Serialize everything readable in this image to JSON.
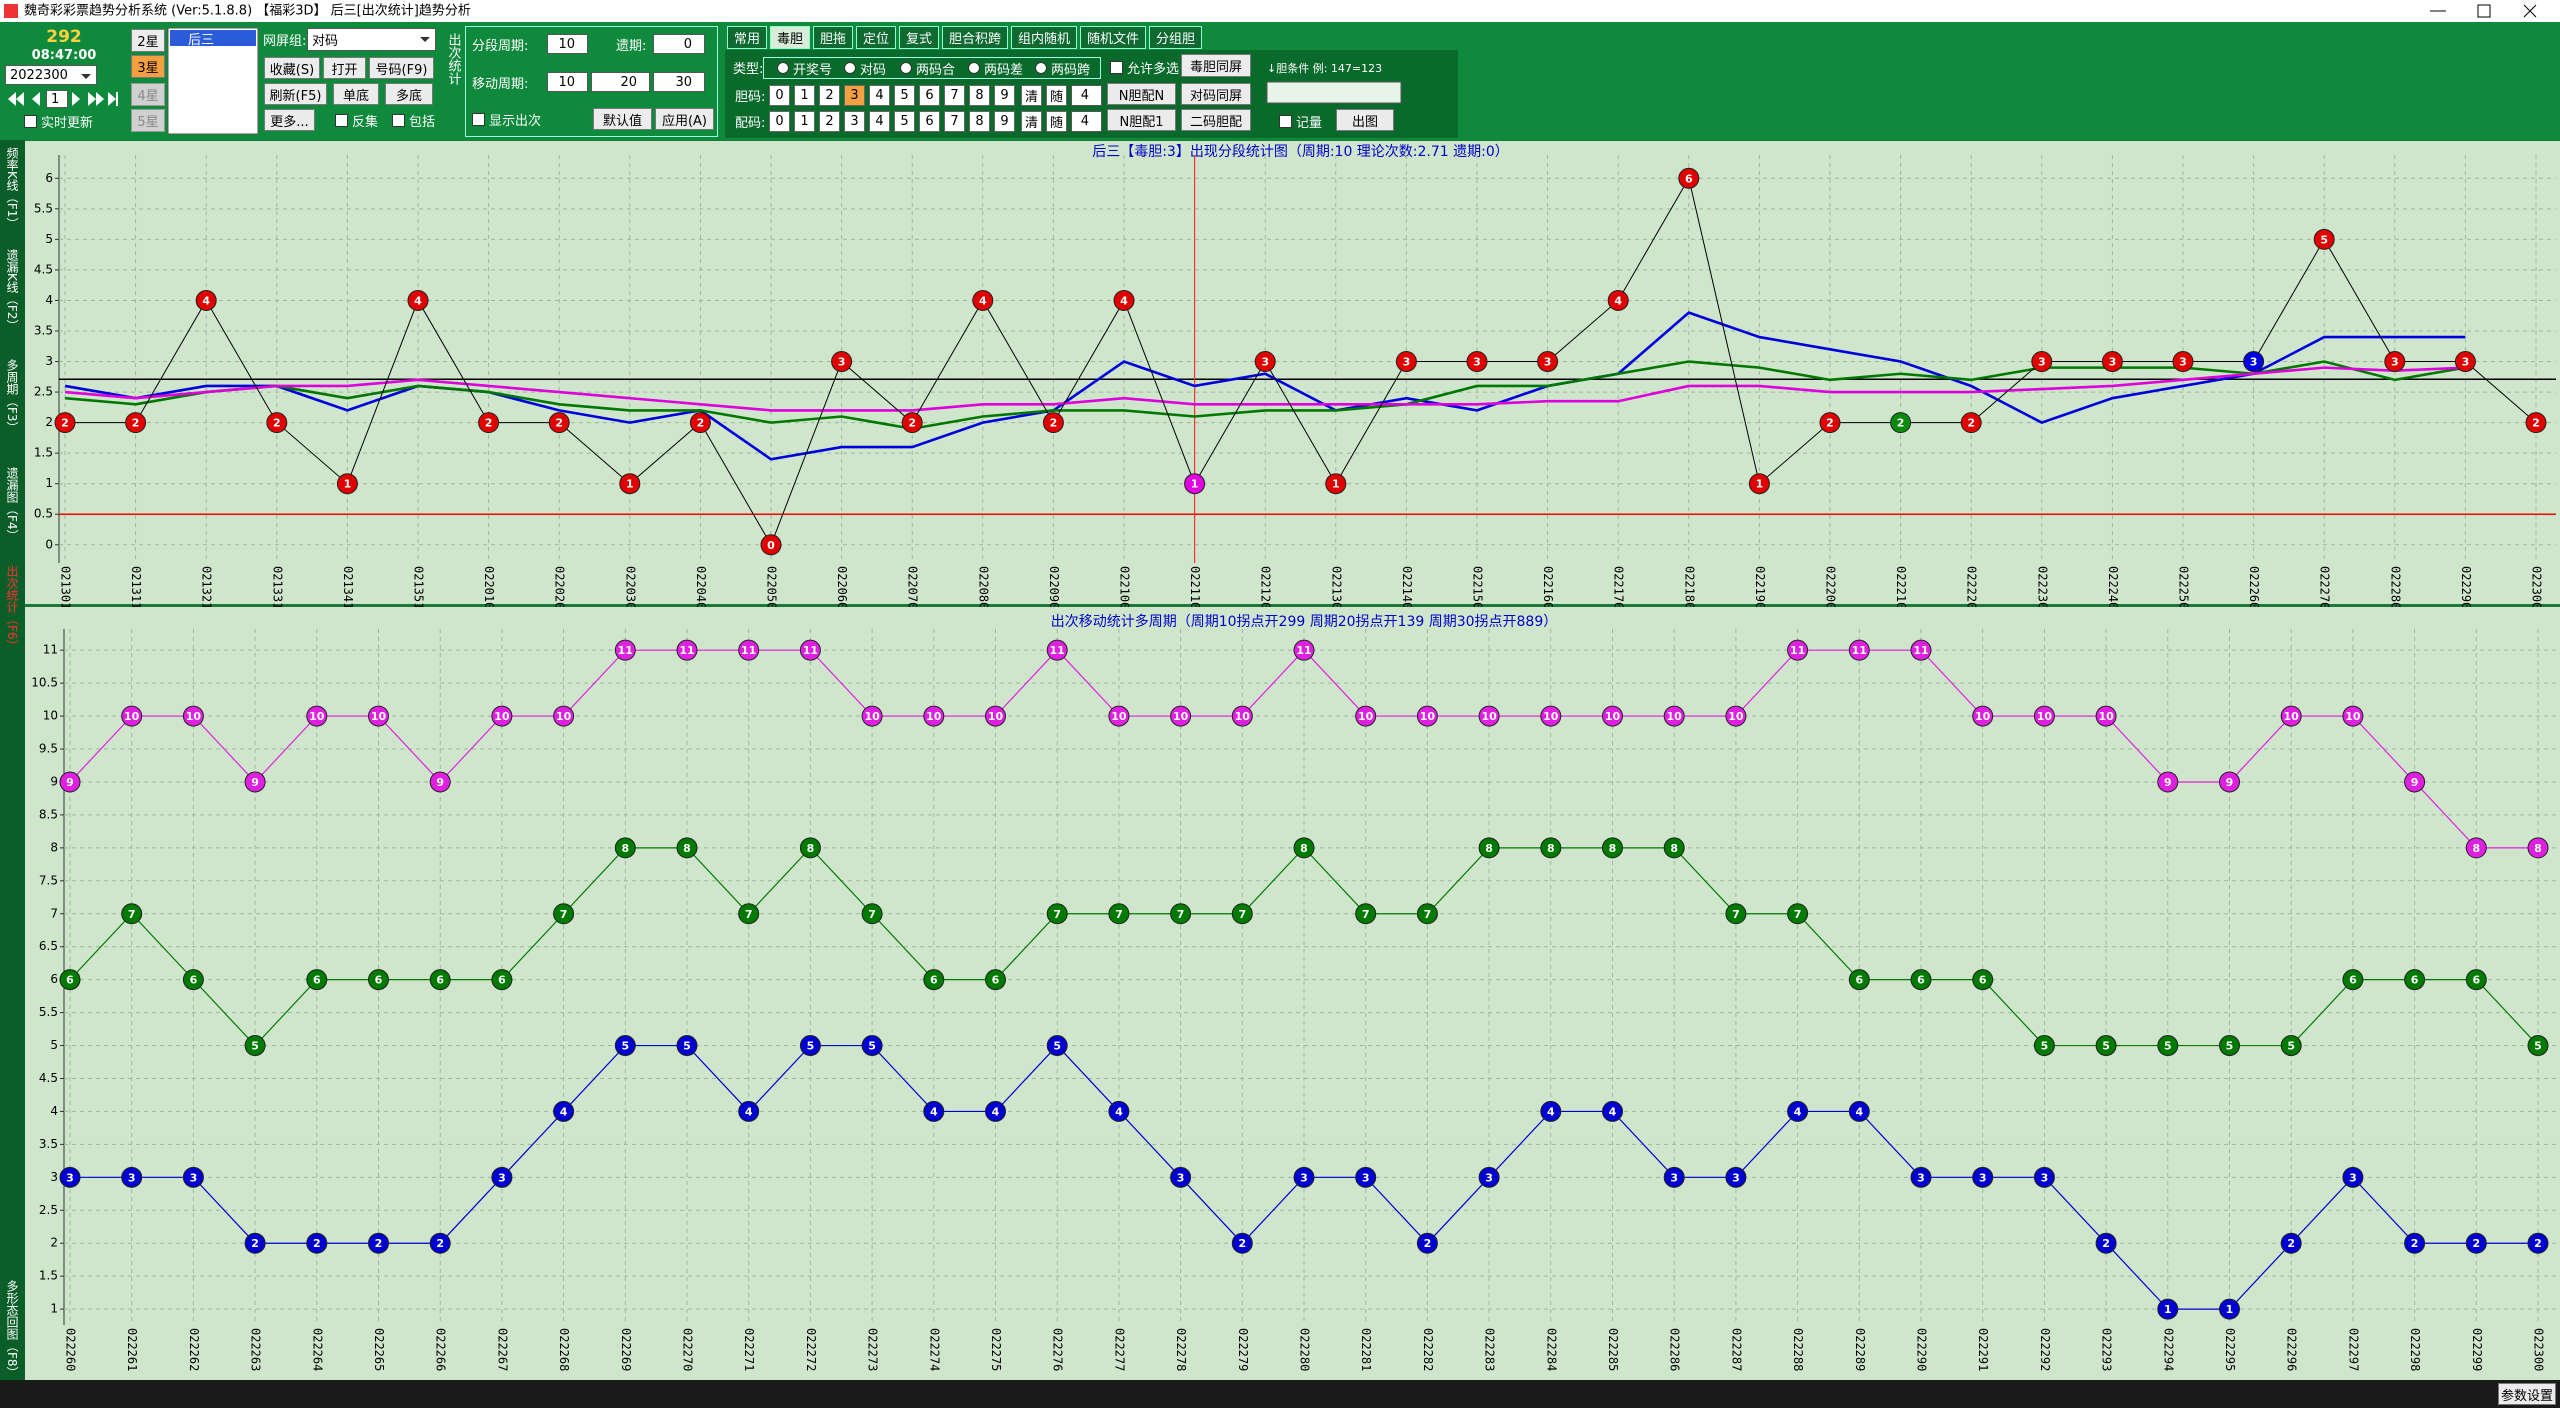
{
  "window": {
    "title": "魏奇彩彩票趋势分析系统 (Ver:5.1.8.8) 【福彩3D】   后三[出次统计]趋势分析"
  },
  "left_panel": {
    "count": "292",
    "time": "08:47:00",
    "period": "2022300",
    "page": "1",
    "realtime": "实时更新",
    "stars": [
      "2星",
      "3星",
      "4星",
      "5星"
    ],
    "selected_star": 1,
    "list": [
      "后三"
    ]
  },
  "filter": {
    "label": "网屏组:",
    "value": "对码",
    "buttons": [
      "收藏(S)",
      "打开",
      "号码(F9)",
      "刷新(F5)",
      "单底",
      "多底",
      "更多..."
    ],
    "checks": [
      "反集",
      "包括"
    ]
  },
  "settings": {
    "group_label": "出次统计",
    "segment_period": "分段周期:",
    "segment_value": "10",
    "miss": "遗期:",
    "miss_value": "0",
    "moving": "移动周期:",
    "moving_values": [
      "10",
      "20",
      "30"
    ],
    "show": "显示出次",
    "buttons": [
      "默认值",
      "应用(A)"
    ]
  },
  "tabs": [
    "常用",
    "毒胆",
    "胆拖",
    "定位",
    "复式",
    "胆合积跨",
    "组内随机",
    "随机文件",
    "分组胆"
  ],
  "active_tab": 1,
  "panel": {
    "type_label": "类型:",
    "types": [
      "开奖号",
      "对码",
      "两码合",
      "两码差",
      "两码跨"
    ],
    "multi": "允许多选",
    "dan_label": "胆码:",
    "pei_label": "配码:",
    "digits": [
      "0",
      "1",
      "2",
      "3",
      "4",
      "5",
      "6",
      "7",
      "8",
      "9"
    ],
    "dan_selected": 3,
    "clear": "清",
    "random": "随",
    "count": "4",
    "buttons": [
      "毒胆同屏",
      "N胆配N",
      "对码同屏",
      "N胆配1",
      "二码胆配"
    ],
    "condition": "↓胆条件 例: 147=123",
    "record": "记量",
    "draw": "出图"
  },
  "side_tabs": [
    "频率K线（F1）",
    "遗漏K线（F2）",
    "多周期（F3）",
    "遗漏图（F4）",
    "出次统计（F6）",
    "多形态回图（F8）"
  ],
  "active_side_tab": 4,
  "status": {
    "button": "参数设置"
  },
  "charts": [
    {
      "type": "line",
      "title": "后三【毒胆:3】出现分段统计图（周期:10 理论次数:2.71 遗期:0）",
      "background": "#cfe6cd",
      "categories": [
        "021301",
        "021311",
        "021321",
        "021331",
        "021341",
        "021351",
        "022010",
        "022020",
        "022030",
        "022040",
        "022050",
        "022060",
        "022070",
        "022080",
        "022090",
        "022100",
        "022110",
        "022120",
        "022130",
        "022140",
        "022150",
        "022160",
        "022170",
        "022180",
        "022190",
        "022200",
        "022210",
        "022220",
        "022230",
        "022240",
        "022250",
        "022260",
        "022270",
        "022280",
        "022290",
        "022300"
      ],
      "values": [
        2,
        2,
        4,
        2,
        1,
        4,
        2,
        2,
        1,
        2,
        0,
        3,
        2,
        4,
        2,
        4,
        1,
        3,
        1,
        3,
        3,
        3,
        4,
        6,
        1,
        2,
        2,
        2,
        3,
        3,
        3,
        3,
        5,
        3,
        3,
        2
      ],
      "line_color": "#000000",
      "point_colors": [
        "#e00000",
        "#e00000",
        "#e00000",
        "#e00000",
        "#e00000",
        "#e00000",
        "#e00000",
        "#e00000",
        "#e00000",
        "#e00000",
        "#e00000",
        "#e00000",
        "#e00000",
        "#e00000",
        "#e00000",
        "#e00000",
        "#e000e0",
        "#e00000",
        "#e00000",
        "#e00000",
        "#e00000",
        "#e00000",
        "#e00000",
        "#e00000",
        "#e00000",
        "#e00000",
        "#0a8a0a",
        "#e00000",
        "#e00000",
        "#e00000",
        "#e00000",
        "#0000e0",
        "#e00000",
        "#e00000",
        "#e00000",
        "#e00000"
      ],
      "series": [
        {
          "color": "#0000dd",
          "values": [
            2.6,
            2.4,
            2.6,
            2.6,
            2.2,
            2.6,
            2.5,
            2.2,
            2.0,
            2.2,
            1.4,
            1.6,
            1.6,
            2.0,
            2.2,
            3.0,
            2.6,
            2.8,
            2.2,
            2.4,
            2.2,
            2.6,
            2.8,
            3.8,
            3.4,
            3.2,
            3.0,
            2.6,
            2.0,
            2.4,
            2.6,
            2.8,
            3.4,
            3.4,
            3.4,
            null
          ]
        },
        {
          "color": "#007700",
          "values": [
            2.4,
            2.3,
            2.5,
            2.6,
            2.4,
            2.6,
            2.5,
            2.3,
            2.2,
            2.2,
            2.0,
            2.1,
            1.9,
            2.1,
            2.2,
            2.2,
            2.1,
            2.2,
            2.2,
            2.3,
            2.6,
            2.6,
            2.8,
            3.0,
            2.9,
            2.7,
            2.8,
            2.7,
            2.9,
            2.9,
            2.9,
            2.8,
            3.0,
            2.7,
            2.9,
            null
          ]
        },
        {
          "color": "#dd00dd",
          "values": [
            2.5,
            2.4,
            2.5,
            2.6,
            2.6,
            2.7,
            2.6,
            2.5,
            2.4,
            2.3,
            2.2,
            2.2,
            2.2,
            2.3,
            2.3,
            2.4,
            2.3,
            2.3,
            2.3,
            2.3,
            2.3,
            2.35,
            2.35,
            2.6,
            2.6,
            2.5,
            2.5,
            2.5,
            2.55,
            2.6,
            2.7,
            2.8,
            2.9,
            2.85,
            2.9,
            null
          ]
        }
      ],
      "reference_lines": [
        {
          "value": 2.71,
          "color": "#000000"
        },
        {
          "value": 0.5,
          "color": "#ff0000"
        }
      ],
      "cursor": "022110",
      "ylim": [
        -0.2,
        6.25
      ],
      "yticks": [
        0,
        0.5,
        1,
        1.5,
        2,
        2.5,
        3,
        3.5,
        4,
        4.5,
        5,
        5.5,
        6
      ],
      "grid": true
    },
    {
      "type": "line",
      "title": "出次移动统计多周期（周期10拐点开299 周期20拐点开139 周期30拐点开889）",
      "background": "#cfe6cd",
      "categories": [
        "022260",
        "022261",
        "022262",
        "022263",
        "022264",
        "022265",
        "022266",
        "022267",
        "022268",
        "022269",
        "022270",
        "022271",
        "022272",
        "022273",
        "022274",
        "022275",
        "022276",
        "022277",
        "022278",
        "022279",
        "022280",
        "022281",
        "022282",
        "022283",
        "022284",
        "022285",
        "022286",
        "022287",
        "022288",
        "022289",
        "022290",
        "022291",
        "022292",
        "022293",
        "022294",
        "022295",
        "022296",
        "022297",
        "022298",
        "022299",
        "022300"
      ],
      "series": [
        {
          "color": "#e020e0",
          "values": [
            9,
            10,
            10,
            9,
            10,
            10,
            9,
            10,
            10,
            11,
            11,
            11,
            11,
            10,
            10,
            10,
            11,
            10,
            10,
            10,
            11,
            10,
            10,
            10,
            10,
            10,
            10,
            10,
            11,
            11,
            11,
            10,
            10,
            10,
            9,
            9,
            10,
            10,
            9,
            8,
            8
          ]
        },
        {
          "color": "#007a00",
          "values": [
            6,
            7,
            6,
            5,
            6,
            6,
            6,
            6,
            7,
            8,
            8,
            7,
            8,
            7,
            6,
            6,
            7,
            7,
            7,
            7,
            8,
            7,
            7,
            8,
            8,
            8,
            8,
            7,
            7,
            6,
            6,
            6,
            5,
            5,
            5,
            5,
            5,
            6,
            6,
            6,
            5
          ]
        },
        {
          "color": "#0000d0",
          "values": [
            3,
            3,
            3,
            2,
            2,
            2,
            2,
            3,
            4,
            5,
            5,
            4,
            5,
            5,
            4,
            4,
            5,
            4,
            3,
            2,
            3,
            3,
            2,
            3,
            4,
            4,
            3,
            3,
            4,
            4,
            3,
            3,
            3,
            2,
            1,
            1,
            2,
            3,
            2,
            2,
            2
          ]
        }
      ],
      "ylim": [
        0.85,
        11.2
      ],
      "yticks": [
        1,
        1.5,
        2,
        2.5,
        3,
        3.5,
        4,
        4.5,
        5,
        5.5,
        6,
        6.5,
        7,
        7.5,
        8,
        8.5,
        9,
        9.5,
        10,
        10.5,
        11
      ],
      "grid": true
    }
  ]
}
